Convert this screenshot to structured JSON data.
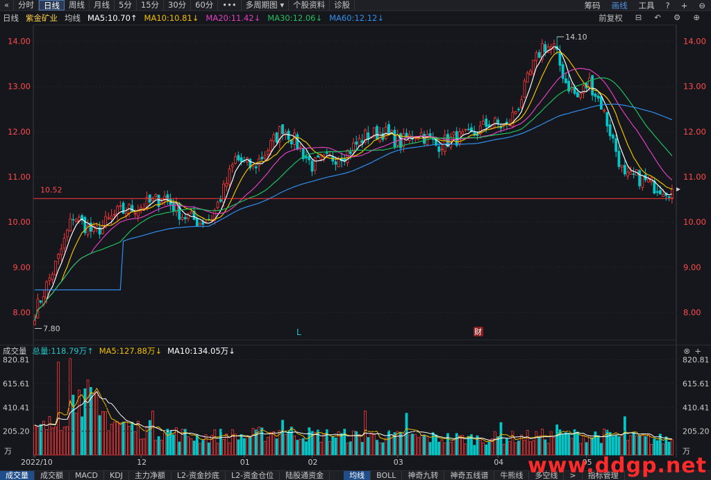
{
  "toolbar": {
    "back": "«",
    "periods": [
      "分时",
      "日线",
      "周线",
      "月线",
      "5分",
      "15分",
      "30分",
      "60分"
    ],
    "active_period": 1,
    "more": "•••",
    "multi_period": "多周期图",
    "stock_info": "个股资料",
    "diagnose": "诊股",
    "right": [
      "筹码",
      "画线",
      "工具"
    ],
    "right_icons": [
      "?",
      "+",
      "⊖"
    ]
  },
  "ma_legend": {
    "period": "日线",
    "stock_name": "紫金矿业",
    "avg_label": "均线",
    "items": [
      {
        "text": "MA5:10.70↑",
        "color": "#ffffff"
      },
      {
        "text": "MA10:10.81↓",
        "color": "#f0c000"
      },
      {
        "text": "MA20:11.42↓",
        "color": "#e040c0"
      },
      {
        "text": "MA30:12.06↓",
        "color": "#20c060"
      },
      {
        "text": "MA60:12.12↓",
        "color": "#3090f0"
      }
    ],
    "adjust": "前复权",
    "tools": [
      "⊟",
      "↶",
      "⚙",
      "⊕"
    ]
  },
  "volume_legend": {
    "title": "成交量",
    "total": "总量:118.79万↑",
    "ma5": "MA5:127.88万↓",
    "ma10": "MA10:134.05万↓",
    "close": "⊗",
    "plus": "+"
  },
  "bottom_tabs": [
    "成交量",
    "成交额",
    "MACD",
    "KDJ",
    "主力净额",
    "L2-资金抄底",
    "L2-资金仓位",
    "陆股通资金"
  ],
  "bottom_tabs_right": [
    "均线",
    "BOLL",
    "神奇九转",
    "神奇五线谱",
    "牛熊线",
    "多空线"
  ],
  "bottom_tab_more": ">",
  "bottom_tab_end": "指标管理",
  "watermark": "www.ddgp.net",
  "chart_data": {
    "type": "candlestick",
    "price_axis": {
      "ticks": [
        "8.00",
        "9.00",
        "10.00",
        "11.00",
        "12.00",
        "13.00",
        "14.00"
      ],
      "ylim": [
        7.7,
        14.3
      ]
    },
    "volume_axis": {
      "ticks": [
        "820.81",
        "615.61",
        "410.41",
        "205.20"
      ],
      "unit": "万",
      "ylim": [
        0,
        830
      ]
    },
    "x_labels": [
      "2022/10",
      "12",
      "01",
      "02",
      "03",
      "04",
      "05"
    ],
    "annotations": {
      "high": "14.10",
      "low": "7.80",
      "hline": "10.52",
      "marker_l": "L",
      "marker_cai": "财"
    },
    "colors": {
      "up": "#ff3a3a",
      "down": "#00c8c8",
      "ma5": "#ffffff",
      "ma10": "#f0c000",
      "ma20": "#e040c0",
      "ma30": "#20c060",
      "ma60": "#3090f0",
      "hline": "#ff3a3a"
    },
    "anchors": [
      [
        0,
        8.0
      ],
      [
        8,
        9.2
      ],
      [
        13,
        10.15
      ],
      [
        20,
        9.75
      ],
      [
        28,
        10.2
      ],
      [
        36,
        10.35
      ],
      [
        44,
        10.55
      ],
      [
        50,
        10.15
      ],
      [
        56,
        10.0
      ],
      [
        60,
        10.1
      ],
      [
        64,
        10.7
      ],
      [
        68,
        11.4
      ],
      [
        74,
        11.2
      ],
      [
        80,
        11.7
      ],
      [
        84,
        12.1
      ],
      [
        88,
        11.8
      ],
      [
        94,
        11.25
      ],
      [
        100,
        11.4
      ],
      [
        106,
        11.55
      ],
      [
        112,
        11.9
      ],
      [
        118,
        12.0
      ],
      [
        124,
        11.75
      ],
      [
        130,
        12.0
      ],
      [
        136,
        11.7
      ],
      [
        142,
        11.85
      ],
      [
        148,
        11.9
      ],
      [
        154,
        12.2
      ],
      [
        160,
        12.1
      ],
      [
        164,
        12.6
      ],
      [
        168,
        13.3
      ],
      [
        172,
        13.9
      ],
      [
        176,
        13.85
      ],
      [
        180,
        13.1
      ],
      [
        184,
        12.75
      ],
      [
        188,
        13.1
      ],
      [
        192,
        12.6
      ],
      [
        196,
        11.8
      ],
      [
        200,
        10.95
      ],
      [
        204,
        11.0
      ],
      [
        210,
        10.8
      ],
      [
        216,
        10.7
      ]
    ],
    "high_index": 177,
    "low_index": 0,
    "n_bars": 217,
    "volume_anchors": [
      [
        0,
        200
      ],
      [
        8,
        280
      ],
      [
        12,
        430
      ],
      [
        16,
        520
      ],
      [
        20,
        420
      ],
      [
        26,
        300
      ],
      [
        34,
        230
      ],
      [
        44,
        200
      ],
      [
        56,
        150
      ],
      [
        64,
        170
      ],
      [
        72,
        160
      ],
      [
        82,
        200
      ],
      [
        96,
        170
      ],
      [
        110,
        160
      ],
      [
        130,
        150
      ],
      [
        150,
        140
      ],
      [
        170,
        160
      ],
      [
        190,
        170
      ],
      [
        205,
        140
      ],
      [
        216,
        130
      ]
    ],
    "volume_spikes": [
      [
        8,
        800
      ],
      [
        12,
        830
      ],
      [
        15,
        560
      ],
      [
        22,
        340
      ],
      [
        40,
        380
      ],
      [
        84,
        300
      ],
      [
        112,
        380
      ],
      [
        126,
        360
      ],
      [
        158,
        280
      ],
      [
        177,
        260
      ],
      [
        200,
        330
      ]
    ]
  }
}
